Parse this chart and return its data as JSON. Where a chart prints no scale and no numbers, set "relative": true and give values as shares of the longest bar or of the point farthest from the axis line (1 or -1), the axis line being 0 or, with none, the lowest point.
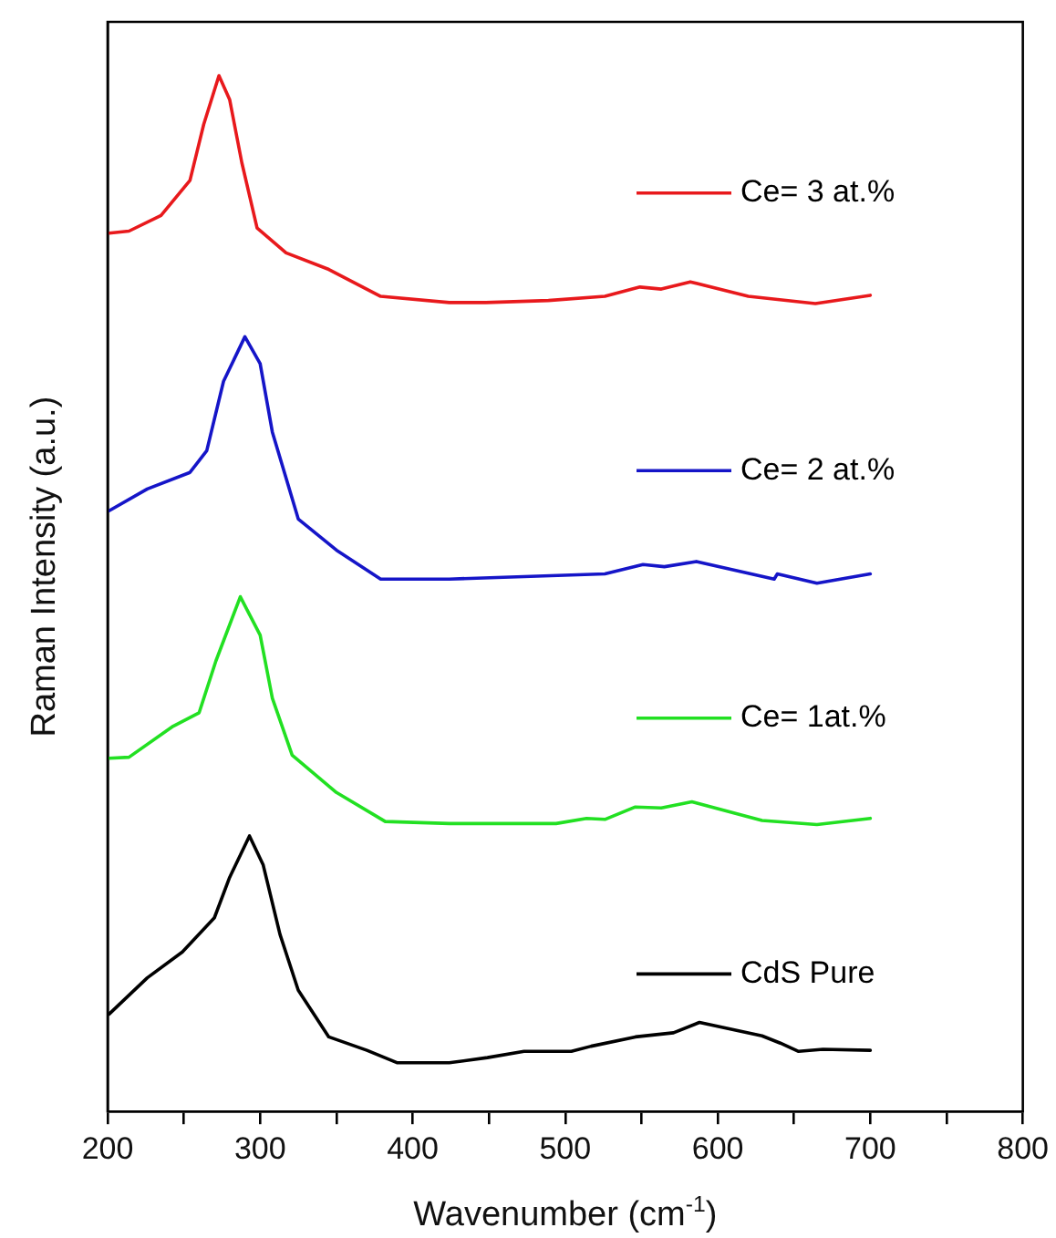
{
  "chart_data": {
    "type": "line",
    "relative": true,
    "xlabel": "Wavenumber (cm$^{-1}$)",
    "ylabel": "Raman Intensity (a.u.)",
    "xlim": [
      200,
      800
    ],
    "xticks": [
      200,
      {
        "value": 250,
        "label": null
      },
      300,
      {
        "value": 350,
        "label": null
      },
      400,
      {
        "value": 450,
        "label": null
      },
      500,
      {
        "value": 550,
        "label": null
      },
      600,
      {
        "value": 650,
        "label": null
      },
      700,
      {
        "value": 750,
        "label": null
      },
      800
    ],
    "grid": false,
    "legend": "right",
    "marker": "none",
    "line_style": "solid",
    "series": [
      {
        "name": "Ce= 3 at.%",
        "color": "#e8191c",
        "x": [
          201,
          214,
          235,
          254,
          263,
          273,
          280,
          288,
          298,
          317,
          345,
          379,
          424,
          448,
          489,
          526,
          549,
          563,
          582,
          620,
          664,
          700
        ],
        "values": [
          0.848,
          0.85,
          0.865,
          0.899,
          0.953,
          1.0,
          0.977,
          0.916,
          0.853,
          0.829,
          0.813,
          0.787,
          0.781,
          0.781,
          0.783,
          0.787,
          0.796,
          0.794,
          0.801,
          0.787,
          0.78,
          0.788
        ]
      },
      {
        "name": "Ce= 2 at.%",
        "color": "#1515c8",
        "x": [
          201,
          226,
          254,
          265,
          276,
          290,
          300,
          308,
          325,
          350,
          379,
          424,
          464,
          526,
          551,
          565,
          586,
          637,
          639,
          665,
          700
        ],
        "values": [
          0.58,
          0.601,
          0.617,
          0.638,
          0.705,
          0.748,
          0.722,
          0.656,
          0.572,
          0.542,
          0.514,
          0.514,
          0.516,
          0.519,
          0.528,
          0.526,
          0.531,
          0.514,
          0.519,
          0.51,
          0.519
        ]
      },
      {
        "name": "Ce= 1at.%",
        "color": "#22e022",
        "x": [
          201,
          214,
          243,
          260,
          271,
          287,
          300,
          308,
          321,
          350,
          382,
          424,
          494,
          514,
          526,
          546,
          563,
          583,
          629,
          665,
          700
        ],
        "values": [
          0.341,
          0.342,
          0.372,
          0.385,
          0.435,
          0.497,
          0.46,
          0.399,
          0.344,
          0.308,
          0.28,
          0.278,
          0.278,
          0.283,
          0.282,
          0.294,
          0.293,
          0.299,
          0.281,
          0.277,
          0.283
        ]
      },
      {
        "name": "CdS Pure",
        "color": "#000000",
        "x": [
          201,
          226,
          249,
          270,
          280,
          293,
          302,
          313,
          325,
          345,
          370,
          390,
          424,
          449,
          473,
          504,
          517,
          546,
          571,
          588,
          629,
          641,
          653,
          669,
          700
        ],
        "values": [
          0.094,
          0.129,
          0.154,
          0.187,
          0.226,
          0.266,
          0.238,
          0.171,
          0.117,
          0.072,
          0.059,
          0.047,
          0.047,
          0.052,
          0.058,
          0.058,
          0.063,
          0.072,
          0.076,
          0.086,
          0.073,
          0.066,
          0.058,
          0.06,
          0.059
        ]
      }
    ]
  }
}
